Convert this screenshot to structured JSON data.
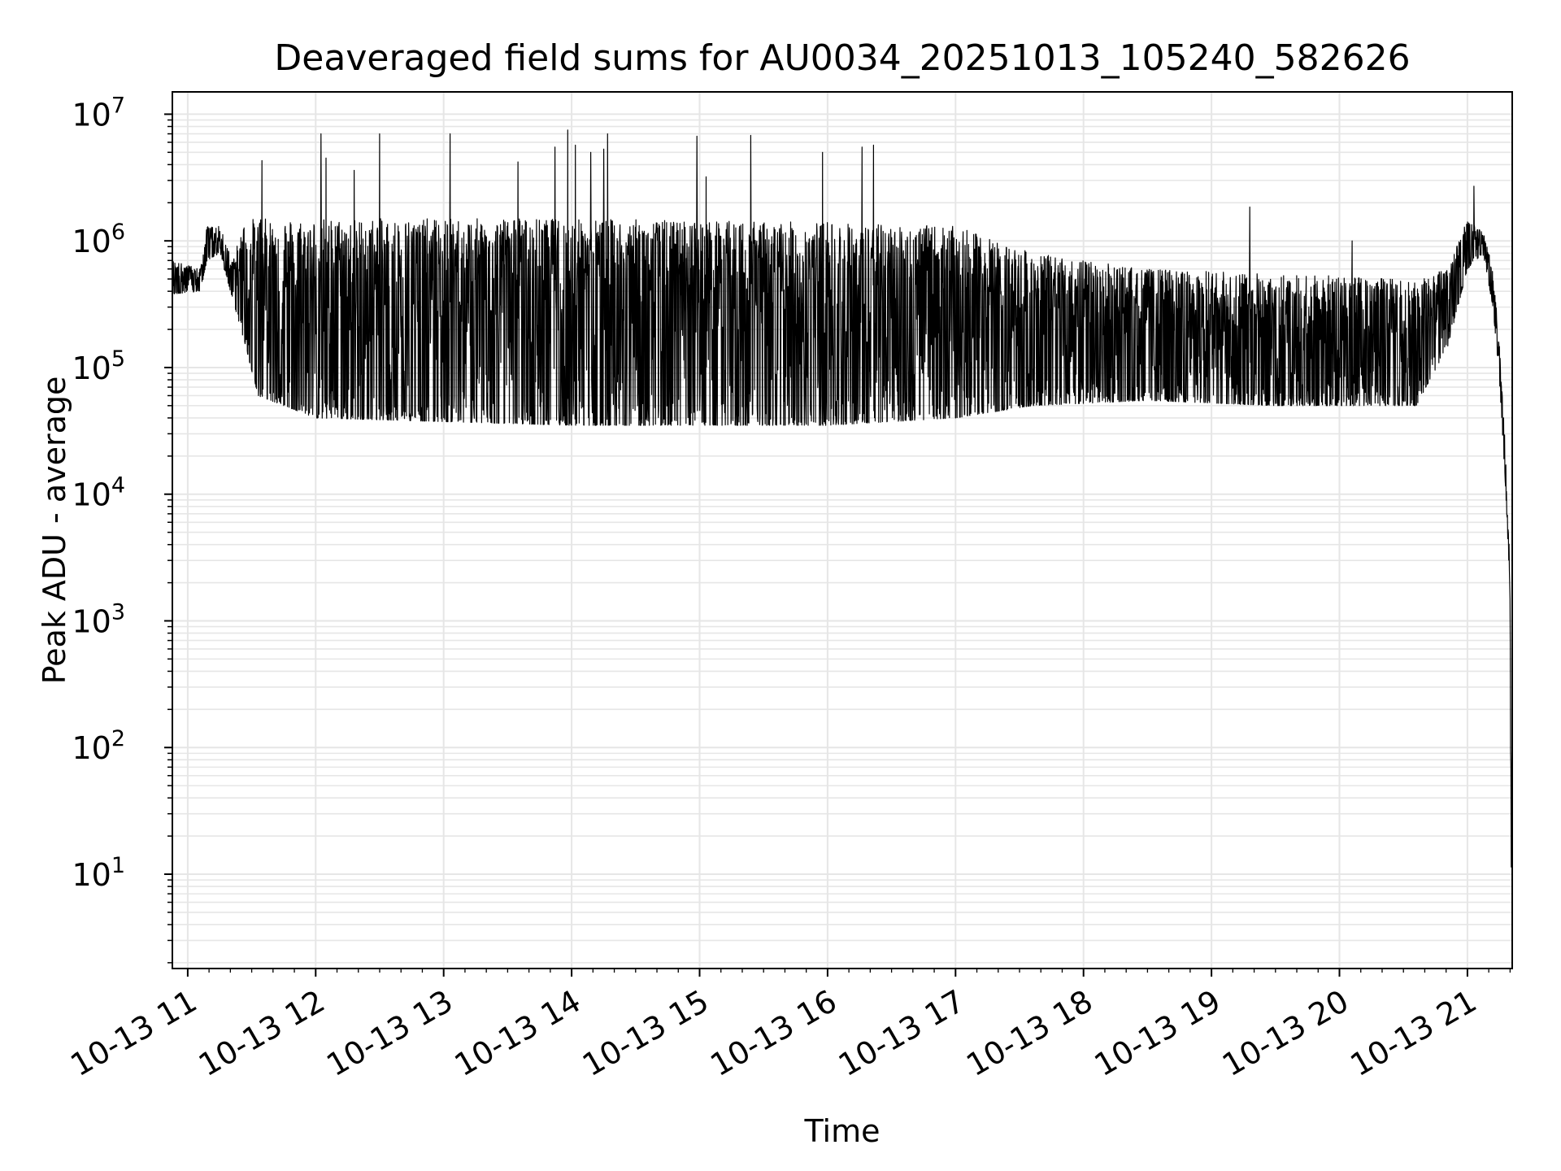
{
  "chart_data": {
    "type": "line",
    "title": "Deaveraged field sums for AU0034_20251013_105240_582626",
    "xlabel": "Time",
    "ylabel": "Peak ADU - average",
    "yscale": "log",
    "xlim_hours": [
      10.88,
      21.35
    ],
    "ylim": [
      1.8,
      15000000
    ],
    "x_ticks": [
      {
        "hour": 11,
        "label": "10-13 11"
      },
      {
        "hour": 12,
        "label": "10-13 12"
      },
      {
        "hour": 13,
        "label": "10-13 13"
      },
      {
        "hour": 14,
        "label": "10-13 14"
      },
      {
        "hour": 15,
        "label": "10-13 15"
      },
      {
        "hour": 16,
        "label": "10-13 16"
      },
      {
        "hour": 17,
        "label": "10-13 17"
      },
      {
        "hour": 18,
        "label": "10-13 18"
      },
      {
        "hour": 19,
        "label": "10-13 19"
      },
      {
        "hour": 20,
        "label": "10-13 20"
      },
      {
        "hour": 21,
        "label": "10-13 21"
      }
    ],
    "y_ticks": [
      {
        "exp": 1,
        "base": "10",
        "sup": "1"
      },
      {
        "exp": 2,
        "base": "10",
        "sup": "2"
      },
      {
        "exp": 3,
        "base": "10",
        "sup": "3"
      },
      {
        "exp": 4,
        "base": "10",
        "sup": "4"
      },
      {
        "exp": 5,
        "base": "10",
        "sup": "5"
      },
      {
        "exp": 6,
        "base": "10",
        "sup": "6"
      },
      {
        "exp": 7,
        "base": "10",
        "sup": "7"
      }
    ],
    "grid": true,
    "line_color": "#000000",
    "grid_color": "#e6e6e6",
    "series": [
      {
        "name": "peak_adu_minus_average",
        "envelope": [
          {
            "hour": 10.88,
            "low": 380000,
            "high": 700000
          },
          {
            "hour": 11.1,
            "low": 400000,
            "high": 600000
          },
          {
            "hour": 11.15,
            "low": 700000,
            "high": 1300000
          },
          {
            "hour": 11.25,
            "low": 800000,
            "high": 1300000
          },
          {
            "hour": 11.35,
            "low": 350000,
            "high": 700000
          },
          {
            "hour": 11.45,
            "low": 150000,
            "high": 1500000
          },
          {
            "hour": 11.55,
            "low": 60000,
            "high": 1500000
          },
          {
            "hour": 12.0,
            "low": 40000,
            "high": 1500000
          },
          {
            "hour": 14.0,
            "low": 35000,
            "high": 1500000
          },
          {
            "hour": 16.0,
            "low": 35000,
            "high": 1400000
          },
          {
            "hour": 17.0,
            "low": 40000,
            "high": 1300000
          },
          {
            "hour": 17.6,
            "low": 50000,
            "high": 800000
          },
          {
            "hour": 18.5,
            "low": 55000,
            "high": 600000
          },
          {
            "hour": 19.5,
            "low": 50000,
            "high": 550000
          },
          {
            "hour": 20.6,
            "low": 50000,
            "high": 500000
          },
          {
            "hour": 20.85,
            "low": 150000,
            "high": 600000
          },
          {
            "hour": 21.0,
            "low": 600000,
            "high": 1500000
          },
          {
            "hour": 21.12,
            "low": 800000,
            "high": 1200000
          },
          {
            "hour": 21.2,
            "low": 300000,
            "high": 600000
          },
          {
            "hour": 21.25,
            "low": 80000,
            "high": 150000
          },
          {
            "hour": 21.3,
            "low": 10000,
            "high": 20000
          },
          {
            "hour": 21.33,
            "low": 2000,
            "high": 3000
          },
          {
            "hour": 21.345,
            "low": 4,
            "high": 100
          }
        ],
        "spikes": [
          {
            "hour": 11.58,
            "value": 4300000
          },
          {
            "hour": 12.04,
            "value": 7000000
          },
          {
            "hour": 12.08,
            "value": 4500000
          },
          {
            "hour": 12.3,
            "value": 3600000
          },
          {
            "hour": 12.5,
            "value": 7000000
          },
          {
            "hour": 13.05,
            "value": 7000000
          },
          {
            "hour": 13.58,
            "value": 4200000
          },
          {
            "hour": 13.87,
            "value": 5500000
          },
          {
            "hour": 13.97,
            "value": 7500000
          },
          {
            "hour": 14.03,
            "value": 5700000
          },
          {
            "hour": 14.15,
            "value": 5000000
          },
          {
            "hour": 14.25,
            "value": 5300000
          },
          {
            "hour": 14.28,
            "value": 7000000
          },
          {
            "hour": 14.98,
            "value": 6700000
          },
          {
            "hour": 15.05,
            "value": 3200000
          },
          {
            "hour": 15.4,
            "value": 6800000
          },
          {
            "hour": 15.96,
            "value": 5000000
          },
          {
            "hour": 16.27,
            "value": 5500000
          },
          {
            "hour": 16.36,
            "value": 5700000
          },
          {
            "hour": 19.3,
            "value": 1850000
          },
          {
            "hour": 20.1,
            "value": 1000000
          },
          {
            "hour": 21.05,
            "value": 2700000
          }
        ]
      }
    ]
  }
}
